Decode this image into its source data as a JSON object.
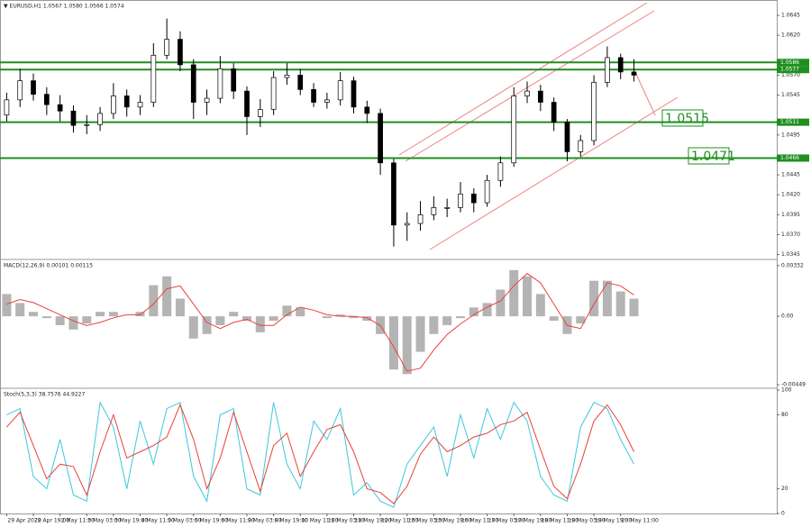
{
  "chart_data": [
    {
      "type": "candlestick",
      "title": "▼ EURUSD,H1  1.0567 1.0580 1.0566 1.0574",
      "xlim": [
        -0.5,
        57.7
      ],
      "xticks": [
        {
          "value": 0,
          "label": "29 Apr 2022"
        },
        {
          "value": 2,
          "label": "29 Apr 19:00"
        },
        {
          "value": 4,
          "label": "2 May 11:00"
        },
        {
          "value": 6,
          "label": "3 May 03:00"
        },
        {
          "value": 8,
          "label": "3 May 19:00"
        },
        {
          "value": 10,
          "label": "4 May 11:00"
        },
        {
          "value": 12,
          "label": "5 May 03:00"
        },
        {
          "value": 14,
          "label": "5 May 19:00"
        },
        {
          "value": 16,
          "label": "6 May 11:00"
        },
        {
          "value": 18,
          "label": "9 May 03:00"
        },
        {
          "value": 20,
          "label": "9 May 19:00"
        },
        {
          "value": 22,
          "label": "10 May 11:00"
        },
        {
          "value": 24,
          "label": "11 May 03:00"
        },
        {
          "value": 26,
          "label": "11 May 19:00"
        },
        {
          "value": 28,
          "label": "12 May 11:00"
        },
        {
          "value": 30,
          "label": "13 May 03:00"
        },
        {
          "value": 32,
          "label": "13 May 19:00"
        },
        {
          "value": 34,
          "label": "16 May 11:00"
        },
        {
          "value": 36,
          "label": "17 May 03:00"
        },
        {
          "value": 38,
          "label": "17 May 19:00"
        },
        {
          "value": 40,
          "label": "18 May 11:00"
        },
        {
          "value": 42,
          "label": "19 May 03:00"
        },
        {
          "value": 44,
          "label": "19 May 19:00"
        },
        {
          "value": 46,
          "label": "20 May 11:00"
        }
      ],
      "ylim": [
        1.034,
        1.0662
      ],
      "yticks": [
        1.0645,
        {
          "value": 1.062,
          "label": "1.0620"
        },
        {
          "value": 1.057,
          "label": "1.0570"
        },
        1.0545,
        1.0495,
        1.0445,
        {
          "value": 1.042,
          "label": "1.0420"
        },
        1.0395,
        {
          "value": 1.037,
          "label": "1.0370"
        },
        1.0345
      ],
      "open": [
        1.052,
        1.0539,
        1.0563,
        1.0546,
        1.0533,
        1.0525,
        1.0507,
        1.0508,
        1.0522,
        1.0544,
        1.053,
        1.0536,
        1.0595,
        1.0615,
        1.0583,
        1.0536,
        1.0541,
        1.0578,
        1.055,
        1.0518,
        1.0527,
        1.0567,
        1.057,
        1.0552,
        1.0536,
        1.0539,
        1.0563,
        1.053,
        1.0522,
        1.046,
        1.0382,
        1.0384,
        1.0395,
        1.0404,
        1.0404,
        1.0421,
        1.041,
        1.0438,
        1.046,
        1.0544,
        1.055,
        1.0536,
        1.0511,
        1.0474,
        1.0488,
        1.0561,
        1.0592,
        1.0574
      ],
      "high": [
        1.0548,
        1.0578,
        1.0572,
        1.0555,
        1.0545,
        1.0532,
        1.052,
        1.053,
        1.056,
        1.0552,
        1.0545,
        1.061,
        1.0641,
        1.0625,
        1.059,
        1.0552,
        1.0594,
        1.0585,
        1.0556,
        1.054,
        1.0575,
        1.0585,
        1.0578,
        1.056,
        1.0548,
        1.0574,
        1.0568,
        1.0538,
        1.0528,
        1.0465,
        1.0398,
        1.0412,
        1.0418,
        1.0415,
        1.0436,
        1.0428,
        1.0445,
        1.0468,
        1.0555,
        1.0562,
        1.0558,
        1.0542,
        1.0515,
        1.0495,
        1.057,
        1.0606,
        1.0597,
        1.059
      ],
      "low": [
        1.0512,
        1.053,
        1.0538,
        1.052,
        1.0512,
        1.0498,
        1.0496,
        1.05,
        1.0515,
        1.0518,
        1.052,
        1.053,
        1.059,
        1.0575,
        1.0515,
        1.052,
        1.0535,
        1.054,
        1.0495,
        1.0505,
        1.052,
        1.0558,
        1.0545,
        1.053,
        1.0528,
        1.0532,
        1.0522,
        1.051,
        1.0445,
        1.0355,
        1.0362,
        1.0375,
        1.0388,
        1.0392,
        1.0398,
        1.0398,
        1.0405,
        1.043,
        1.0455,
        1.0535,
        1.0525,
        1.05,
        1.0462,
        1.0468,
        1.0482,
        1.0555,
        1.0565,
        1.0562
      ],
      "close": [
        1.0539,
        1.0563,
        1.0546,
        1.0533,
        1.0525,
        1.0507,
        1.0508,
        1.0522,
        1.0544,
        1.053,
        1.0536,
        1.0595,
        1.0615,
        1.0583,
        1.0536,
        1.0541,
        1.0578,
        1.055,
        1.0518,
        1.0527,
        1.0567,
        1.057,
        1.0552,
        1.0536,
        1.0539,
        1.0563,
        1.053,
        1.0522,
        1.046,
        1.0382,
        1.0384,
        1.0395,
        1.0404,
        1.0404,
        1.0421,
        1.041,
        1.0438,
        1.046,
        1.0544,
        1.055,
        1.0536,
        1.0511,
        1.0474,
        1.0488,
        1.0561,
        1.0592,
        1.0574,
        1.057
      ],
      "up_color": "#ffffff",
      "down_color": "#000000",
      "wick_color": "#000000",
      "levels": [
        1.0586,
        1.0577,
        1.0511,
        1.0466
      ],
      "level_color": "#1f8f1f",
      "annotations": [
        "1.0515",
        "1.0471"
      ]
    },
    {
      "type": "macd",
      "title": "MACD(12,26,9) 0.00101 0.00115",
      "ylim": [
        -0.00466,
        0.00361
      ],
      "yticks": [
        0.00332,
        {
          "value": 0,
          "label": "0.00"
        },
        -0.00449
      ],
      "series": [
        {
          "color": "#b4b4b4",
          "values": [
            0.00146,
            0.00087,
            0.00029,
            -0.00012,
            -0.00058,
            -0.00087,
            -0.00047,
            0.00029,
            0.00029,
            0,
            0.00029,
            0.00204,
            0.00262,
            0.00116,
            -0.00146,
            -0.00116,
            -0.00058,
            0.00029,
            -0.00029,
            -0.00105,
            -0.00029,
            0.0007,
            0.00058,
            0,
            -0.00012,
            0.00012,
            -0.00012,
            -0.00029,
            -0.00116,
            -0.00349,
            -0.00379,
            -0.00233,
            -0.00116,
            -0.00058,
            -0.00012,
            0.00058,
            0.00087,
            0.00175,
            0.00303,
            0.00262,
            0.00146,
            -0.00029,
            -0.00116,
            -0.00047,
            0.00233,
            0.00233,
            0.00163,
            0.00116
          ]
        },
        {
          "color": "#e8413a",
          "values": [
            0.0008,
            0.0011,
            0.0009,
            0.0005,
            0.0001,
            -0.0003,
            -0.0006,
            -0.0004,
            -0.0001,
            0.0001,
            0.0001,
            0.0008,
            0.0018,
            0.002,
            0.0008,
            -0.0004,
            -0.0008,
            -0.0004,
            -0.0002,
            -0.0006,
            -0.0006,
            0.0001,
            0.0006,
            0.0004,
            0.0001,
            0,
            0,
            -0.0001,
            -0.0006,
            -0.002,
            -0.0036,
            -0.0034,
            -0.0022,
            -0.0012,
            -0.0005,
            0.0001,
            0.0006,
            0.001,
            0.002,
            0.0028,
            0.0022,
            0.0008,
            -0.0006,
            -0.0008,
            0.0008,
            0.0022,
            0.002,
            0.0014
          ]
        }
      ]
    },
    {
      "type": "line",
      "title": "Stoch(5,3,3) 38.7576 44.9227",
      "ylim": [
        0,
        100
      ],
      "yticks": [
        100,
        80,
        20,
        0
      ],
      "series": [
        {
          "color": "#3cc8dc",
          "values": [
            80,
            85,
            30,
            20,
            60,
            15,
            10,
            90,
            70,
            20,
            75,
            40,
            85,
            90,
            30,
            10,
            80,
            85,
            20,
            15,
            90,
            40,
            20,
            75,
            60,
            85,
            15,
            25,
            10,
            5,
            40,
            55,
            70,
            30,
            80,
            45,
            85,
            60,
            90,
            75,
            30,
            15,
            10,
            70,
            90,
            85,
            60,
            40
          ]
        },
        {
          "color": "#e8413a",
          "values": [
            70,
            82,
            55,
            28,
            40,
            38,
            15,
            50,
            80,
            45,
            50,
            55,
            62,
            88,
            60,
            20,
            45,
            82,
            50,
            18,
            55,
            65,
            30,
            50,
            68,
            72,
            50,
            20,
            17,
            8,
            22,
            48,
            62,
            50,
            55,
            62,
            65,
            72,
            75,
            82,
            52,
            22,
            12,
            40,
            75,
            88,
            72,
            50
          ]
        }
      ]
    }
  ]
}
